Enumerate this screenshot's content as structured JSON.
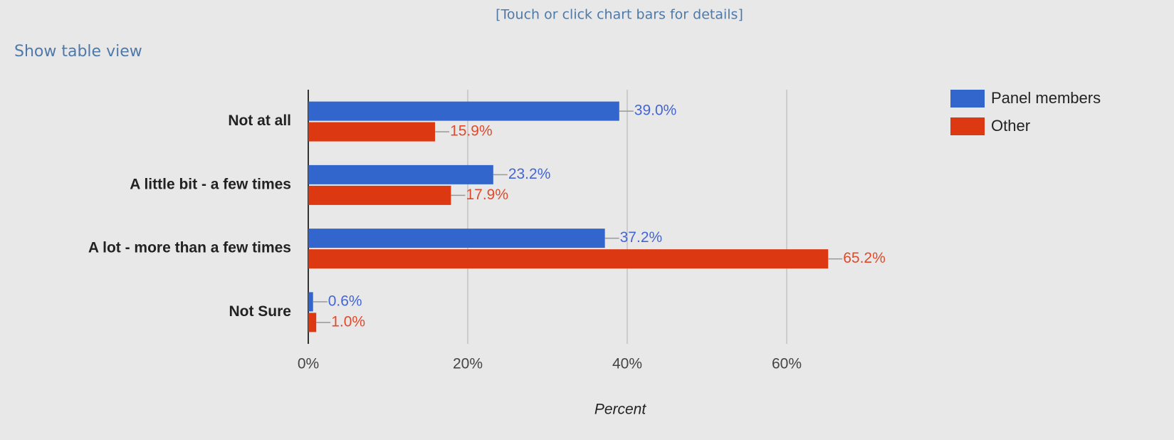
{
  "hint": "[Touch or click chart bars for details]",
  "table_link": "Show table view",
  "chart_data": {
    "type": "hbar",
    "categories": [
      "Not at all",
      "A little bit - a few times",
      "A lot - more than a few times",
      "Not Sure"
    ],
    "series": [
      {
        "name": "Panel members",
        "color": "#3366cc",
        "label_color": "#4466d4",
        "values": [
          39.0,
          23.2,
          37.2,
          0.6
        ],
        "value_labels": [
          "39.0%",
          "23.2%",
          "37.2%",
          "0.6%"
        ]
      },
      {
        "name": "Other",
        "color": "#dc3912",
        "label_color": "#e04a2a",
        "values": [
          15.9,
          17.9,
          65.2,
          1.0
        ],
        "value_labels": [
          "15.9%",
          "17.9%",
          "65.2%",
          "1.0%"
        ]
      }
    ],
    "xlabel": "Percent",
    "xlim": [
      0,
      70
    ],
    "xticks": [
      {
        "value": 0,
        "label": "0%"
      },
      {
        "value": 20,
        "label": "20%"
      },
      {
        "value": 40,
        "label": "40%"
      },
      {
        "value": 60,
        "label": "60%"
      }
    ],
    "grid": true,
    "legend": "right"
  }
}
